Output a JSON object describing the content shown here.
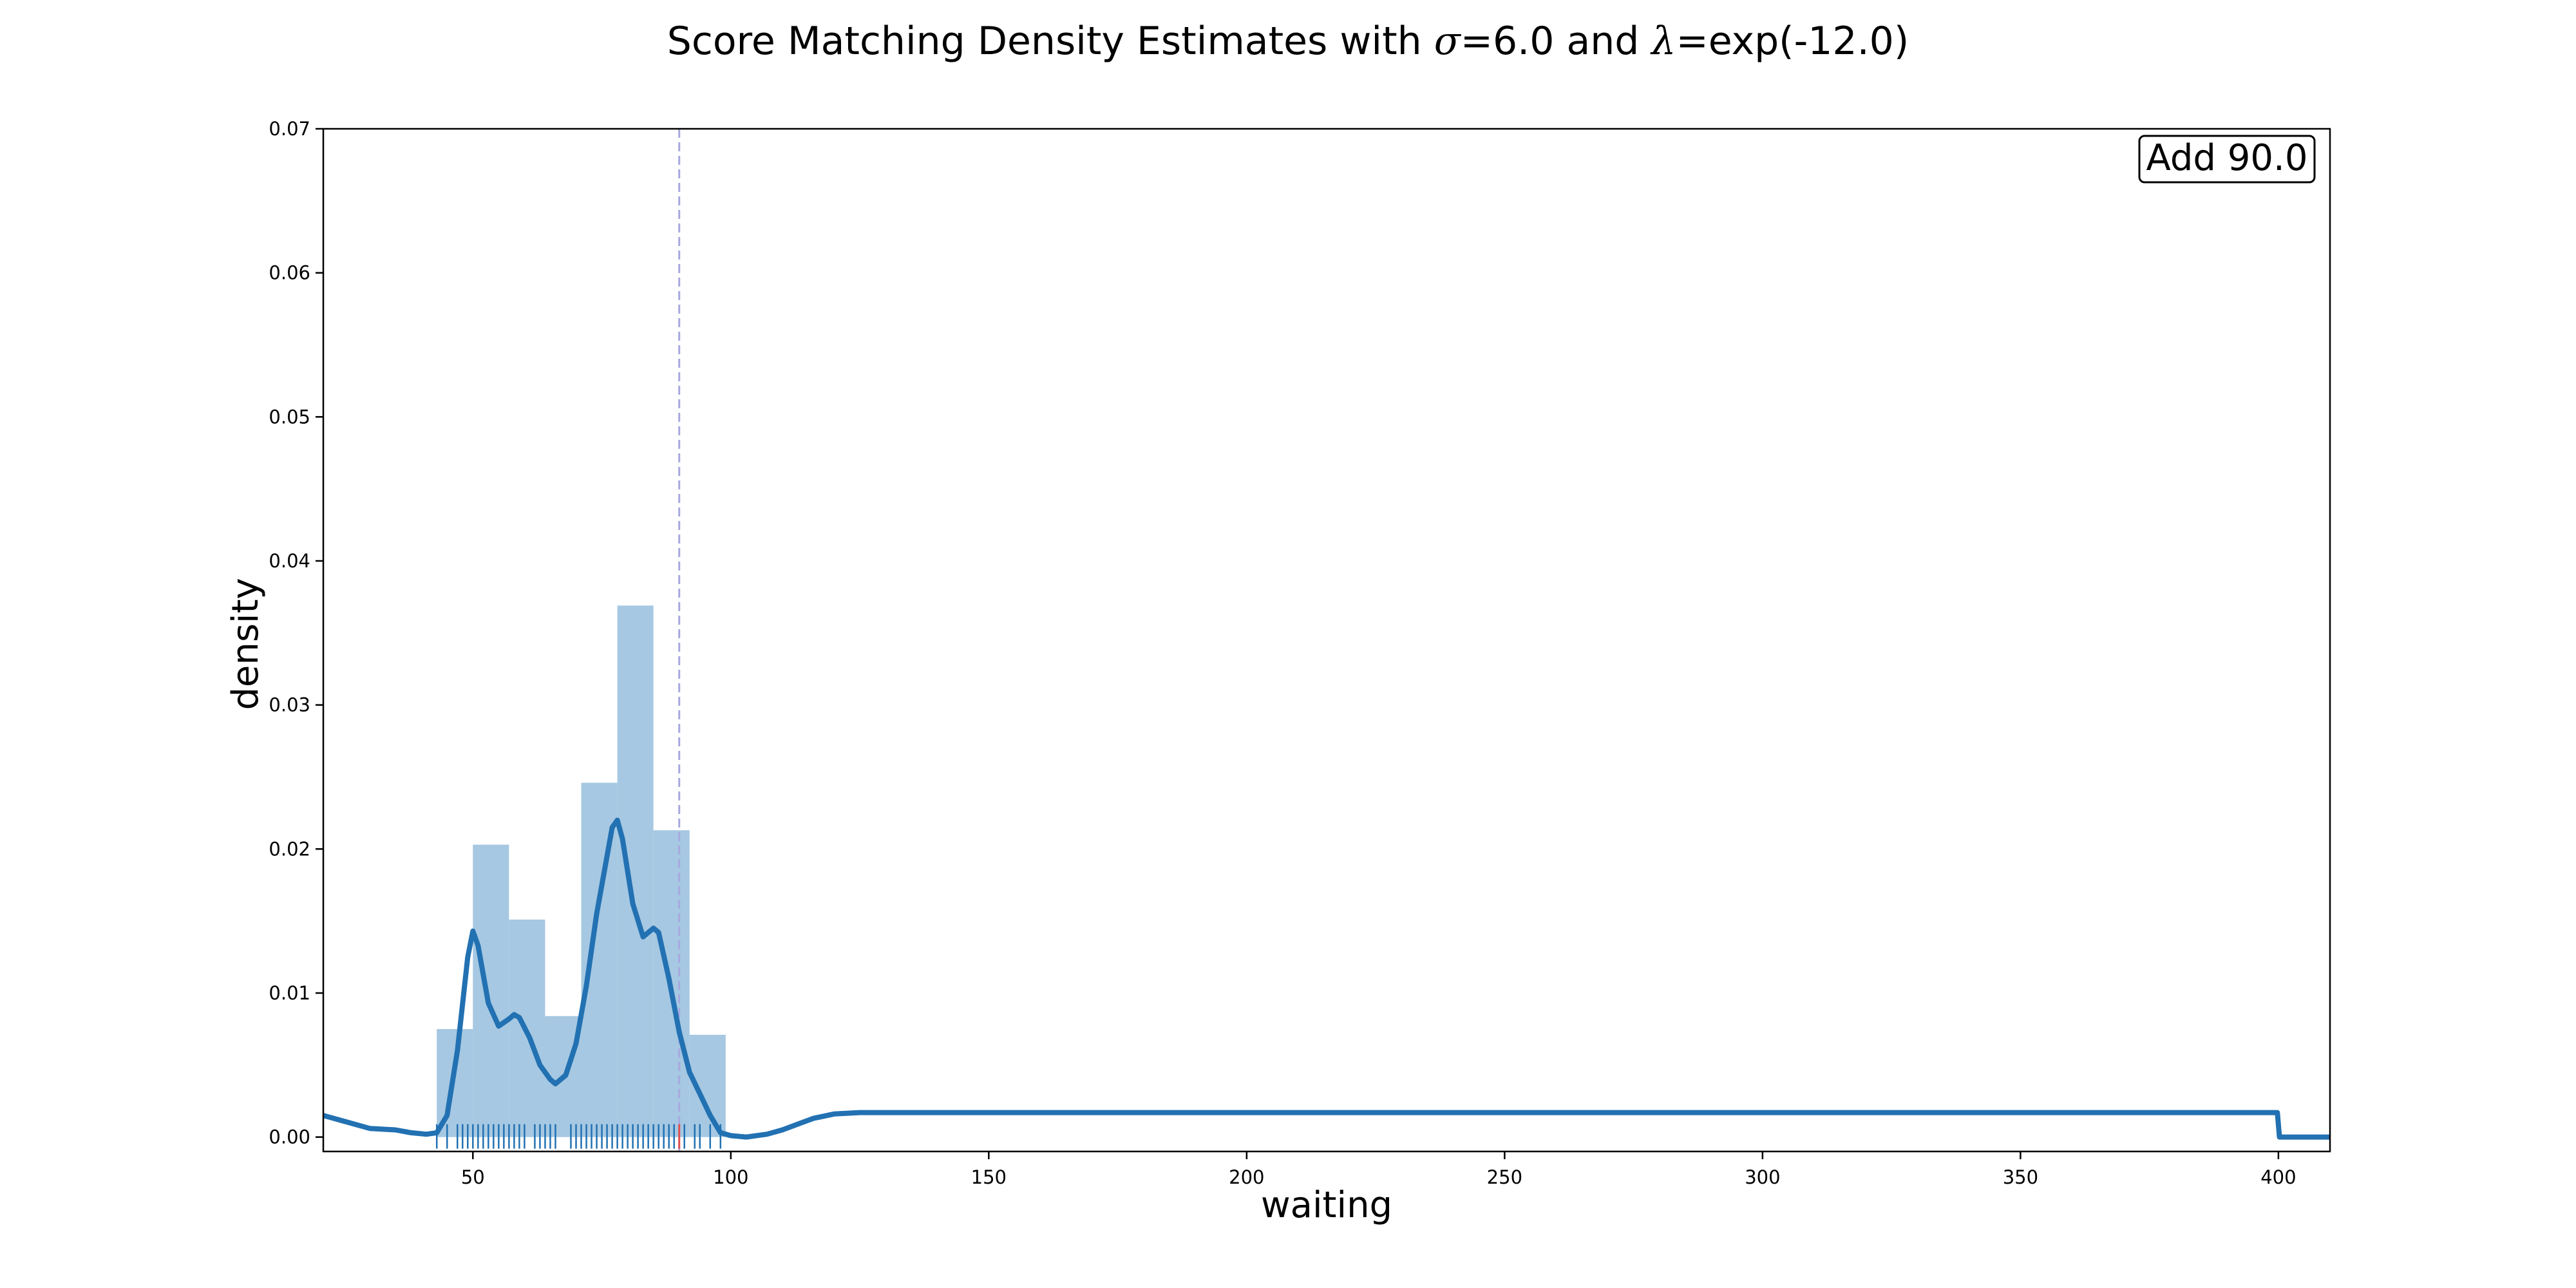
{
  "chart_data": {
    "type": "histogram",
    "title_prefix": "Score Matching Density Estimates with ",
    "title_sigma_symbol": "σ",
    "title_sigma_value": "=6.0 and ",
    "title_lambda_symbol": "λ",
    "title_lambda_value": "=exp(-12.0)",
    "xlabel": "waiting",
    "ylabel": "density",
    "xlim": [
      21,
      410
    ],
    "ylim": [
      -0.001,
      0.07
    ],
    "xticks": [
      50,
      100,
      150,
      200,
      250,
      300,
      350,
      400
    ],
    "yticks": [
      0.0,
      0.01,
      0.02,
      0.03,
      0.04,
      0.05,
      0.06,
      0.07
    ],
    "ytick_labels": [
      "0.00",
      "0.01",
      "0.02",
      "0.03",
      "0.04",
      "0.05",
      "0.06",
      "0.07"
    ],
    "histogram": {
      "bin_edges": [
        43,
        50,
        57,
        64,
        71,
        78,
        85,
        92,
        99
      ],
      "densities": [
        0.0075,
        0.0203,
        0.0151,
        0.0084,
        0.0246,
        0.0369,
        0.0213,
        0.0071
      ],
      "color": "#a6c8e2"
    },
    "density_curve": {
      "color": "#2271b2",
      "points": [
        [
          21,
          0.0015
        ],
        [
          25,
          0.0011
        ],
        [
          30,
          0.0006
        ],
        [
          35,
          0.0005
        ],
        [
          38,
          0.0003
        ],
        [
          41,
          0.0002
        ],
        [
          43,
          0.0003
        ],
        [
          45,
          0.0015
        ],
        [
          47,
          0.006
        ],
        [
          49,
          0.0125
        ],
        [
          50,
          0.0143
        ],
        [
          51,
          0.0133
        ],
        [
          53,
          0.0093
        ],
        [
          55,
          0.0077
        ],
        [
          57,
          0.0082
        ],
        [
          58,
          0.0085
        ],
        [
          59,
          0.0083
        ],
        [
          61,
          0.0069
        ],
        [
          63,
          0.005
        ],
        [
          65,
          0.004
        ],
        [
          66,
          0.0037
        ],
        [
          68,
          0.0043
        ],
        [
          70,
          0.0065
        ],
        [
          72,
          0.0105
        ],
        [
          74,
          0.0155
        ],
        [
          76,
          0.0195
        ],
        [
          77,
          0.0215
        ],
        [
          78,
          0.022
        ],
        [
          79,
          0.0207
        ],
        [
          81,
          0.0162
        ],
        [
          83,
          0.0139
        ],
        [
          85,
          0.0145
        ],
        [
          86,
          0.0142
        ],
        [
          88,
          0.011
        ],
        [
          90,
          0.0073
        ],
        [
          92,
          0.0045
        ],
        [
          94,
          0.003
        ],
        [
          96,
          0.0015
        ],
        [
          98,
          0.0003
        ],
        [
          100,
          0.0001
        ],
        [
          103,
          0.0
        ],
        [
          107,
          0.0002
        ],
        [
          110,
          0.0005
        ],
        [
          113,
          0.0009
        ],
        [
          116,
          0.0013
        ],
        [
          120,
          0.0016
        ],
        [
          125,
          0.0017
        ],
        [
          200,
          0.0017
        ],
        [
          300,
          0.0017
        ],
        [
          399.8,
          0.0017
        ],
        [
          400.2,
          0.0
        ],
        [
          410,
          0.0
        ]
      ]
    },
    "rug": {
      "color": "#2271b2",
      "values": [
        43,
        45,
        47,
        48,
        49,
        50,
        51,
        52,
        53,
        54,
        55,
        56,
        57,
        58,
        59,
        60,
        62,
        63,
        64,
        65,
        66,
        69,
        70,
        71,
        72,
        73,
        74,
        75,
        76,
        77,
        78,
        79,
        80,
        81,
        82,
        83,
        84,
        85,
        86,
        87,
        88,
        89,
        90,
        91,
        93,
        94,
        96,
        98
      ]
    },
    "vline": {
      "x": 90,
      "color": "#a8a8e0",
      "label": "Add 90.0",
      "rug_marker_color": "#e05050"
    }
  }
}
